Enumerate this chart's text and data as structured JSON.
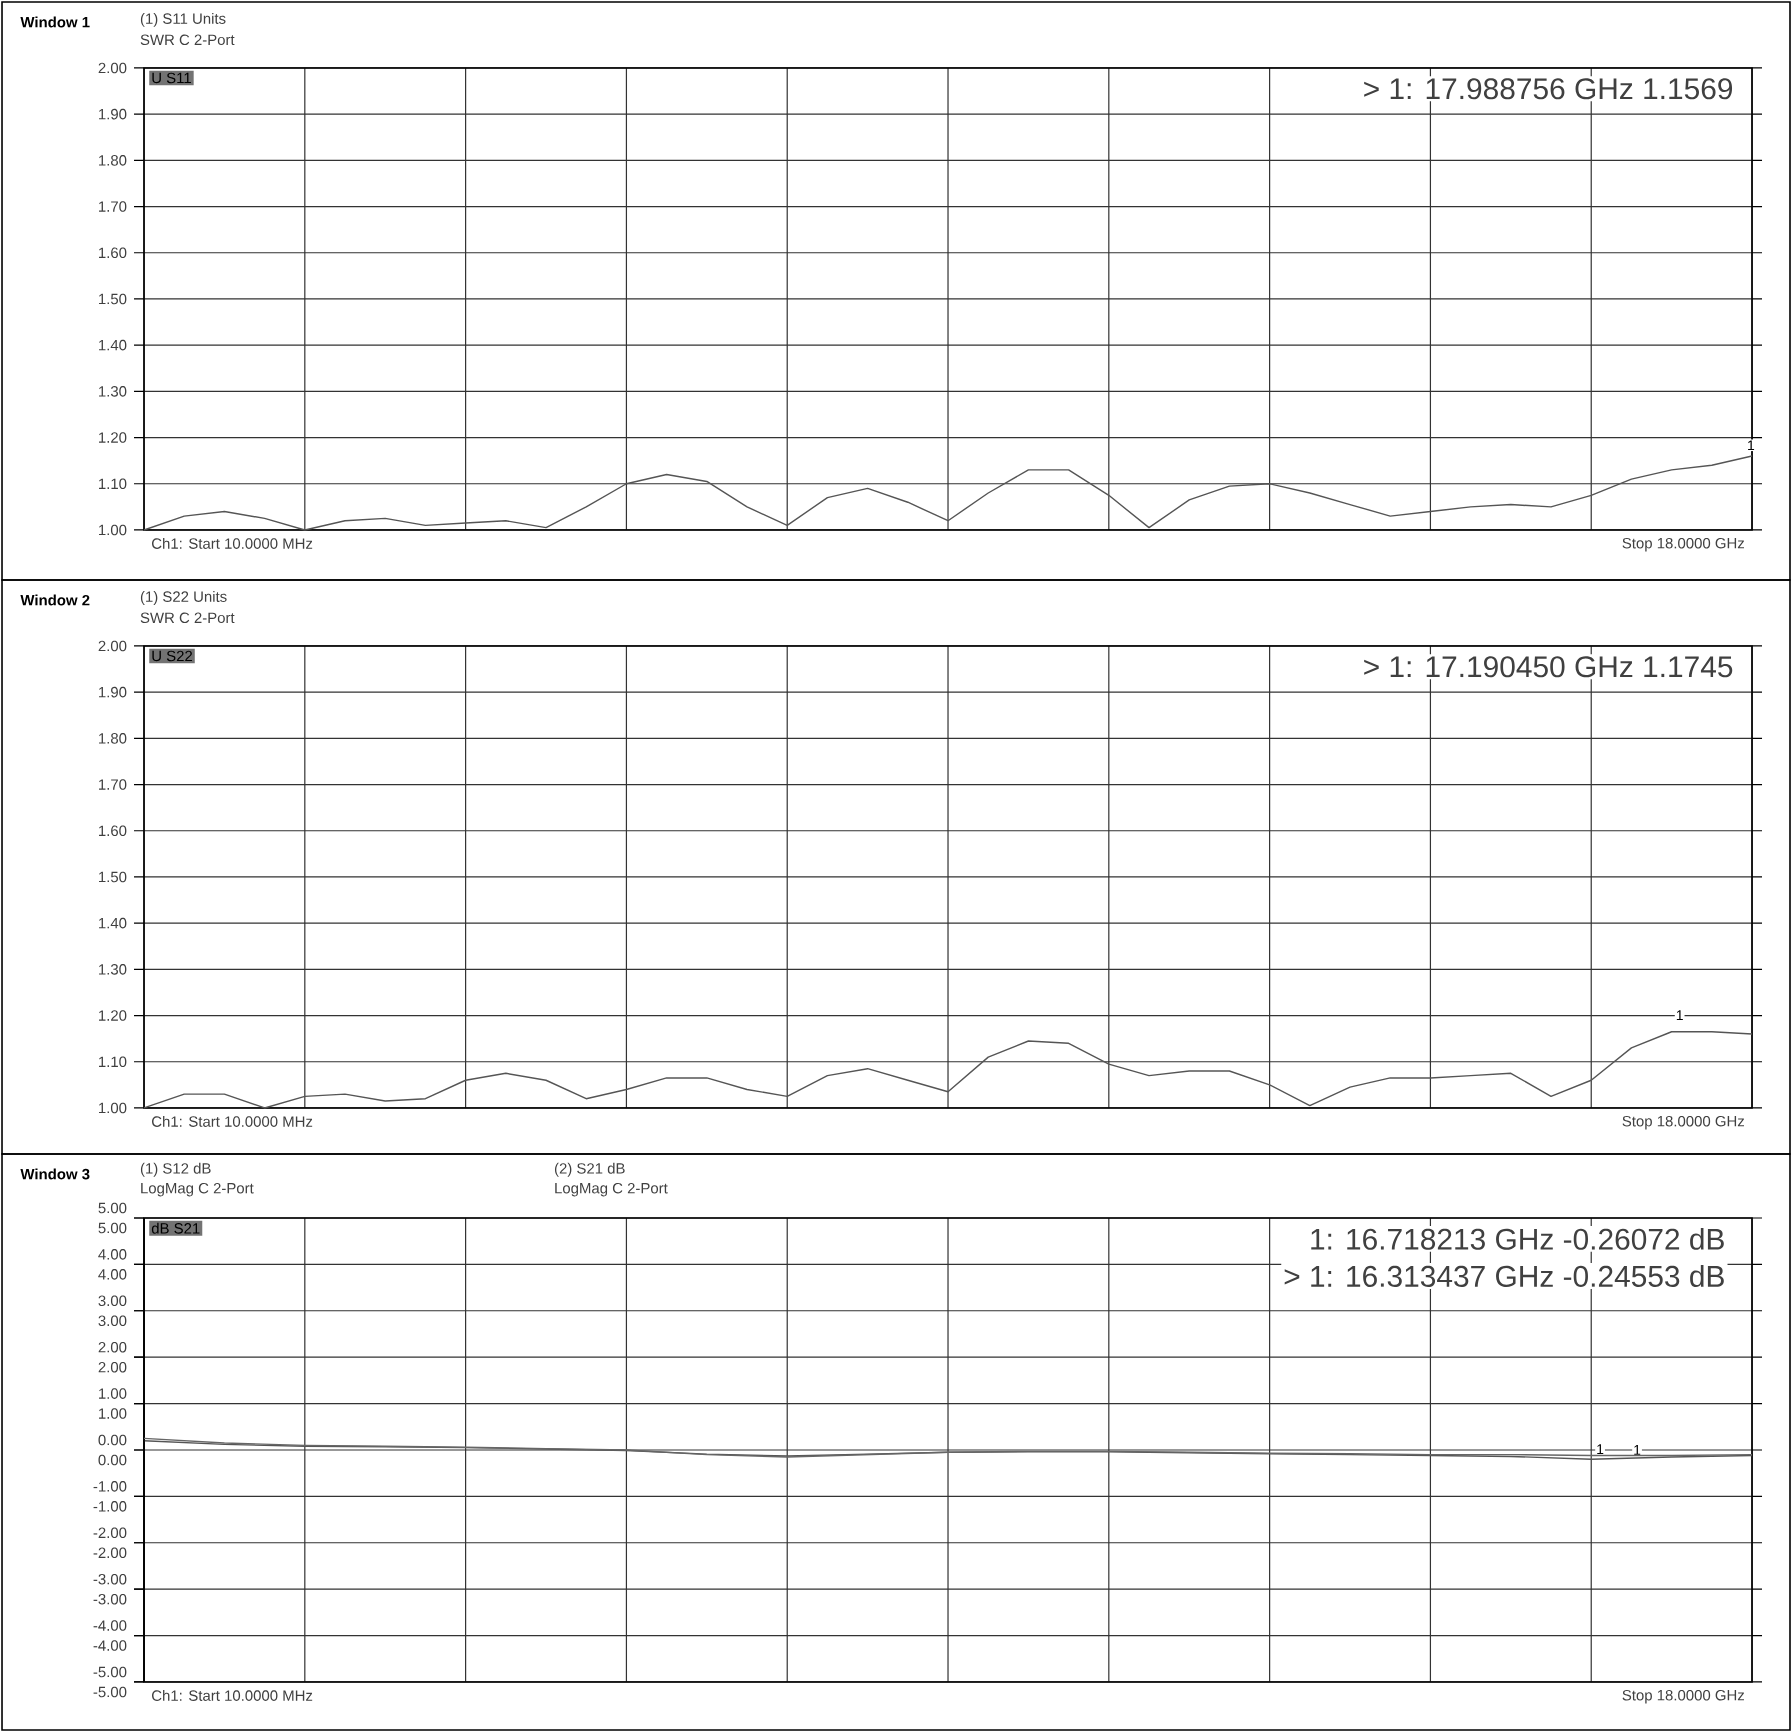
{
  "chart_data": [
    {
      "type": "line",
      "title": "Window 1",
      "grid": true,
      "tick_labels": "y",
      "categories": [
        null,
        null,
        null,
        null,
        null,
        null,
        null,
        null,
        null,
        null,
        null,
        null,
        null,
        null,
        null,
        null,
        null,
        null,
        null,
        null,
        null,
        null,
        null,
        null,
        null,
        null,
        null,
        null,
        null,
        null,
        null,
        null,
        null,
        null,
        null,
        null,
        null,
        null,
        null,
        null,
        null
      ],
      "ylim": [
        1,
        2
      ],
      "yticks": [
        {
          "value": 1.0,
          "label": "1.00"
        },
        {
          "value": 1.1,
          "label": "1.10"
        },
        {
          "value": 1.2,
          "label": "1.20"
        },
        {
          "value": 1.3,
          "label": "1.30"
        },
        {
          "value": 1.4,
          "label": "1.40"
        },
        {
          "value": 1.5,
          "label": "1.50"
        },
        {
          "value": 1.6,
          "label": "1.60"
        },
        {
          "value": 1.7,
          "label": "1.70"
        },
        {
          "value": 1.8,
          "label": "1.80"
        },
        {
          "value": 1.9,
          "label": "1.90"
        },
        {
          "value": 2.0,
          "label": "2.00"
        }
      ],
      "series": [
        {
          "color": "#555555",
          "values": [
            1.0,
            1.03,
            1.04,
            1.025,
            1.0,
            1.02,
            1.025,
            1.01,
            1.015,
            1.02,
            1.005,
            1.05,
            1.1,
            1.12,
            1.105,
            1.05,
            1.01,
            1.07,
            1.09,
            1.06,
            1.02,
            1.08,
            1.13,
            1.13,
            1.075,
            1.005,
            1.065,
            1.095,
            1.1,
            1.08,
            1.055,
            1.03,
            1.04,
            1.05,
            1.055,
            1.05,
            1.075,
            1.11,
            1.13,
            1.14,
            1.16
          ]
        }
      ],
      "annotations": [
        "(1) S11 Units",
        "SWR C  2-Port",
        "U S11",
        "> 1:      17.988756 GHz          1.1569",
        {
          "text": "1",
          "y": 1.1569
        },
        "Ch1: Start  10.0000 MHz",
        "Stop  18.0000 GHz"
      ]
    },
    {
      "type": "line",
      "title": "Window 2",
      "grid": true,
      "tick_labels": "y",
      "categories": [
        null,
        null,
        null,
        null,
        null,
        null,
        null,
        null,
        null,
        null,
        null,
        null,
        null,
        null,
        null,
        null,
        null,
        null,
        null,
        null,
        null,
        null,
        null,
        null,
        null,
        null,
        null,
        null,
        null,
        null,
        null,
        null,
        null,
        null,
        null,
        null,
        null,
        null,
        null,
        null,
        null
      ],
      "ylim": [
        1,
        2
      ],
      "yticks": [
        {
          "value": 1.0,
          "label": "1.00"
        },
        {
          "value": 1.1,
          "label": "1.10"
        },
        {
          "value": 1.2,
          "label": "1.20"
        },
        {
          "value": 1.3,
          "label": "1.30"
        },
        {
          "value": 1.4,
          "label": "1.40"
        },
        {
          "value": 1.5,
          "label": "1.50"
        },
        {
          "value": 1.6,
          "label": "1.60"
        },
        {
          "value": 1.7,
          "label": "1.70"
        },
        {
          "value": 1.8,
          "label": "1.80"
        },
        {
          "value": 1.9,
          "label": "1.90"
        },
        {
          "value": 2.0,
          "label": "2.00"
        }
      ],
      "series": [
        {
          "color": "#555555",
          "values": [
            1.0,
            1.03,
            1.03,
            1.0,
            1.025,
            1.03,
            1.015,
            1.02,
            1.06,
            1.075,
            1.06,
            1.02,
            1.04,
            1.065,
            1.065,
            1.04,
            1.025,
            1.07,
            1.085,
            1.06,
            1.035,
            1.11,
            1.145,
            1.14,
            1.095,
            1.07,
            1.08,
            1.08,
            1.05,
            1.005,
            1.045,
            1.065,
            1.065,
            1.07,
            1.075,
            1.025,
            1.06,
            1.13,
            1.165,
            1.165,
            1.16
          ]
        }
      ],
      "annotations": [
        "(1) S22 Units",
        "SWR C  2-Port",
        "U S22",
        "> 1:      17.190450 GHz          1.1745",
        {
          "text": "1",
          "y": 1.1745
        },
        "Ch1: Start  10.0000 MHz",
        "Stop  18.0000 GHz"
      ]
    },
    {
      "type": "line",
      "title": "Window 3",
      "grid": true,
      "tick_labels": "y",
      "categories": [
        null,
        null,
        null,
        null,
        null,
        null,
        null,
        null,
        null,
        null,
        null,
        null,
        null,
        null,
        null,
        null,
        null,
        null,
        null,
        null,
        null
      ],
      "ylim": [
        -5,
        5
      ],
      "yticks": [
        {
          "value": -5,
          "label": "-5.00"
        },
        {
          "value": -4,
          "label": "-4.00"
        },
        {
          "value": -3,
          "label": "-3.00"
        },
        {
          "value": -2,
          "label": "-2.00"
        },
        {
          "value": -1,
          "label": "-1.00"
        },
        {
          "value": 0,
          "label": "0.00"
        },
        {
          "value": 1,
          "label": "1.00"
        },
        {
          "value": 2,
          "label": "2.00"
        },
        {
          "value": 3,
          "label": "3.00"
        },
        {
          "value": 4,
          "label": "4.00"
        },
        {
          "value": 5,
          "label": "5.00"
        }
      ],
      "y2lim": [
        -5,
        5
      ],
      "y2ticks": [
        {
          "value": -5,
          "label": "-5.00"
        },
        {
          "value": -4,
          "label": "-4.00"
        },
        {
          "value": -3,
          "label": "-3.00"
        },
        {
          "value": -2,
          "label": "-2.00"
        },
        {
          "value": -1,
          "label": "-1.00"
        },
        {
          "value": 0,
          "label": "0.00"
        },
        {
          "value": 1,
          "label": "1.00"
        },
        {
          "value": 2,
          "label": "2.00"
        },
        {
          "value": 3,
          "label": "3.00"
        },
        {
          "value": 4,
          "label": "4.00"
        },
        {
          "value": 5,
          "label": "5.00"
        }
      ],
      "series": [
        {
          "color": "#666666",
          "axis": "y2",
          "values": [
            0.25,
            0.15,
            0.1,
            0.08,
            0.06,
            0.03,
            0.0,
            -0.1,
            -0.15,
            -0.1,
            -0.05,
            -0.03,
            -0.03,
            -0.05,
            -0.07,
            -0.08,
            -0.1,
            -0.1,
            -0.12,
            -0.12,
            -0.1
          ]
        },
        {
          "color": "#555555",
          "values": [
            0.2,
            0.12,
            0.08,
            0.07,
            0.05,
            0.02,
            -0.01,
            -0.09,
            -0.13,
            -0.09,
            -0.05,
            -0.04,
            -0.04,
            -0.06,
            -0.08,
            -0.1,
            -0.12,
            -0.14,
            -0.2,
            -0.15,
            -0.12
          ]
        }
      ],
      "annotations": [
        "(1) S12 dB",
        "LogMag C  2-Port",
        "(2) S21 dB",
        "LogMag C  2-Port",
        "dB S21",
        "1:      16.718213 GHz  -0.26072 dB",
        "> 1:      16.313437 GHz  -0.24553 dB",
        {
          "text": "1",
          "y": -0.26072
        },
        {
          "text": "1",
          "y": -0.24553
        },
        "Ch1: Start  10.0000 MHz",
        "Stop  18.0000 GHz"
      ]
    }
  ]
}
